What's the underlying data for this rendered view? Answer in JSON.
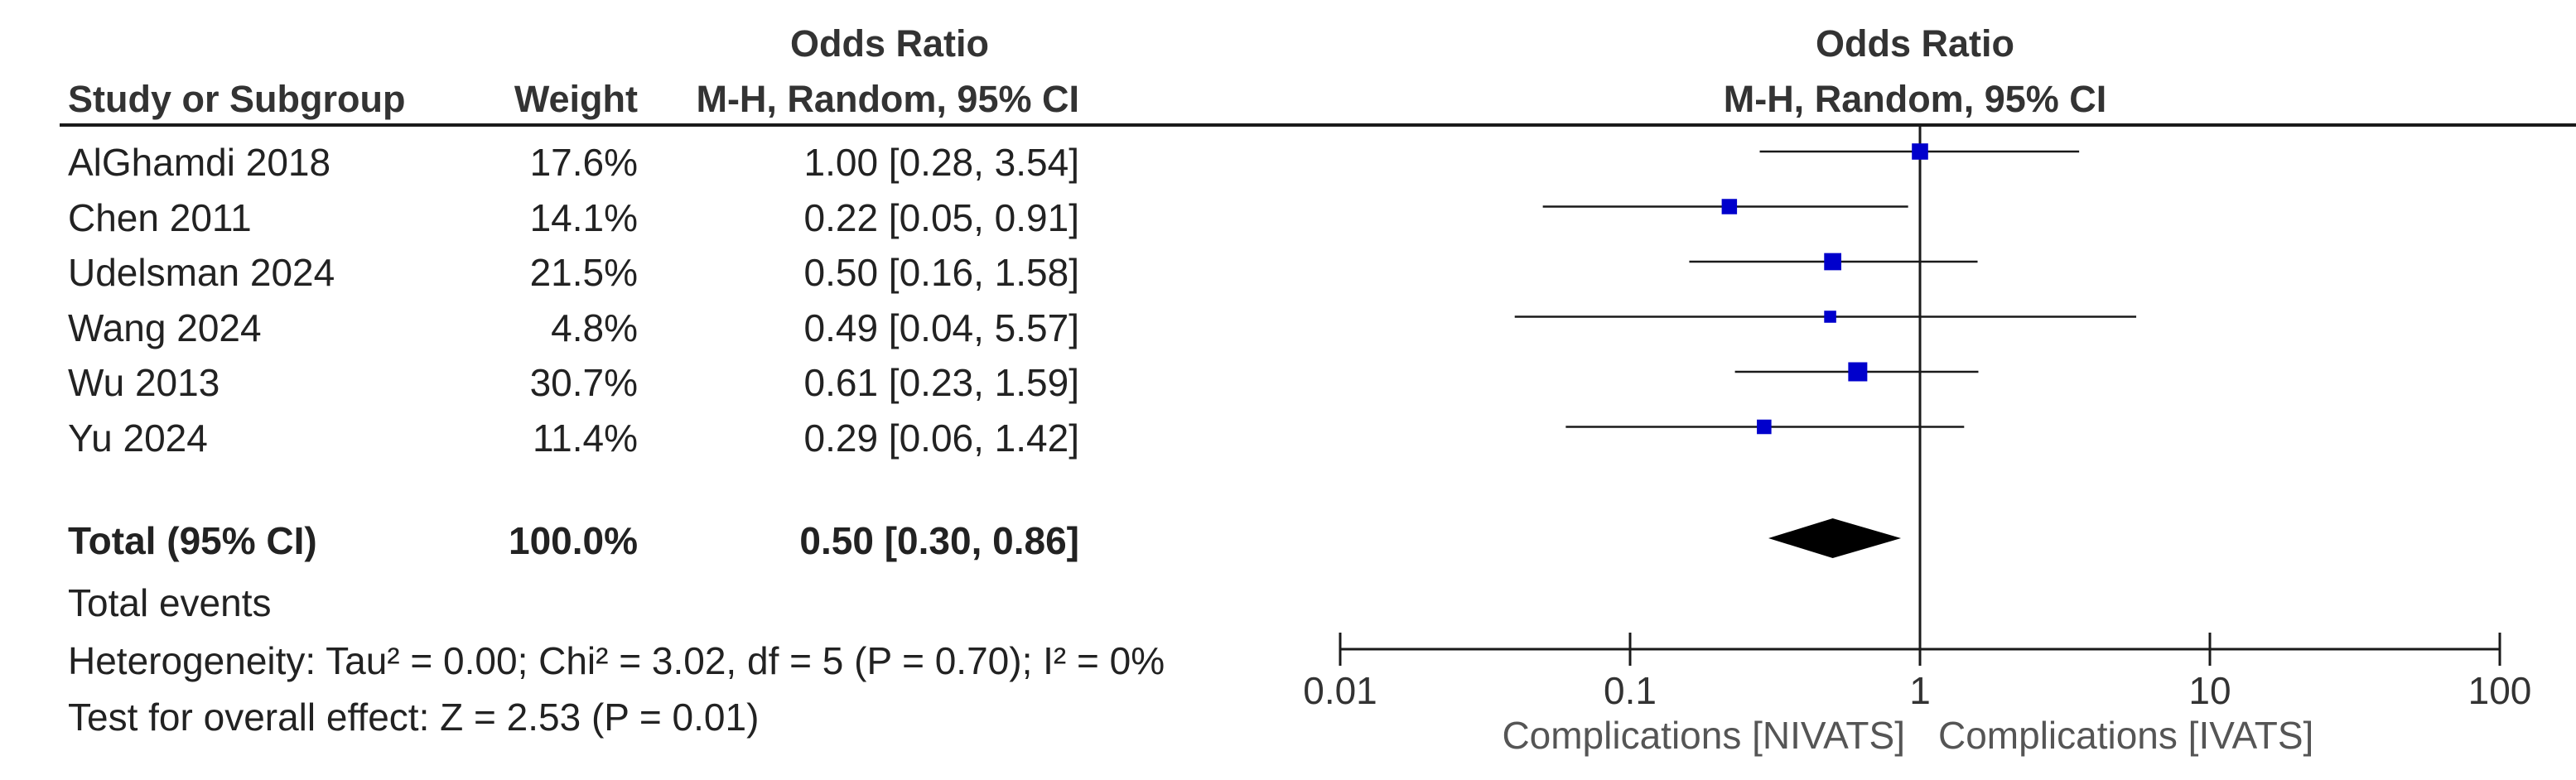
{
  "header": {
    "col_study": "Study or Subgroup",
    "col_weight": "Weight",
    "col_or_line1": "Odds Ratio",
    "col_or_line2": "M-H, Random, 95% CI",
    "plot_line1": "Odds Ratio",
    "plot_line2": "M-H, Random, 95% CI"
  },
  "total": {
    "label": "Total (95% CI)",
    "weight": "100.0%",
    "ci_text": "0.50 [0.30, 0.86]"
  },
  "footer": {
    "events": "Total events",
    "heterogeneity": "Heterogeneity: Tau² = 0.00; Chi² = 3.02, df = 5 (P = 0.70); I² = 0%",
    "overall": "Test for overall effect: Z = 2.53 (P = 0.01)",
    "favours_left": "Complications [NIVATS]",
    "favours_right": "Complications [IVATS]"
  },
  "chart_data": {
    "type": "forest",
    "x_scale": "log",
    "xlim": [
      0.01,
      100
    ],
    "ticks": [
      {
        "value": 0.01,
        "label": "0.01"
      },
      {
        "value": 0.1,
        "label": "0.1"
      },
      {
        "value": 1,
        "label": "1"
      },
      {
        "value": 10,
        "label": "10"
      },
      {
        "value": 100,
        "label": "100"
      }
    ],
    "reference_line": 1,
    "marker_color": "#0000cc",
    "studies": [
      {
        "name": "AlGhamdi 2018",
        "weight_pct": 17.6,
        "weight": "17.6%",
        "or": 1.0,
        "lo": 0.28,
        "hi": 3.54,
        "ci_text": "1.00 [0.28, 3.54]"
      },
      {
        "name": "Chen 2011",
        "weight_pct": 14.1,
        "weight": "14.1%",
        "or": 0.22,
        "lo": 0.05,
        "hi": 0.91,
        "ci_text": "0.22 [0.05, 0.91]"
      },
      {
        "name": "Udelsman 2024",
        "weight_pct": 21.5,
        "weight": "21.5%",
        "or": 0.5,
        "lo": 0.16,
        "hi": 1.58,
        "ci_text": "0.50 [0.16, 1.58]"
      },
      {
        "name": "Wang 2024",
        "weight_pct": 4.8,
        "weight": "4.8%",
        "or": 0.49,
        "lo": 0.04,
        "hi": 5.57,
        "ci_text": "0.49 [0.04, 5.57]"
      },
      {
        "name": "Wu 2013",
        "weight_pct": 30.7,
        "weight": "30.7%",
        "or": 0.61,
        "lo": 0.23,
        "hi": 1.59,
        "ci_text": "0.61 [0.23, 1.59]"
      },
      {
        "name": "Yu 2024",
        "weight_pct": 11.4,
        "weight": "11.4%",
        "or": 0.29,
        "lo": 0.06,
        "hi": 1.42,
        "ci_text": "0.29 [0.06, 1.42]"
      }
    ],
    "pooled": {
      "or": 0.5,
      "lo": 0.3,
      "hi": 0.86
    }
  }
}
